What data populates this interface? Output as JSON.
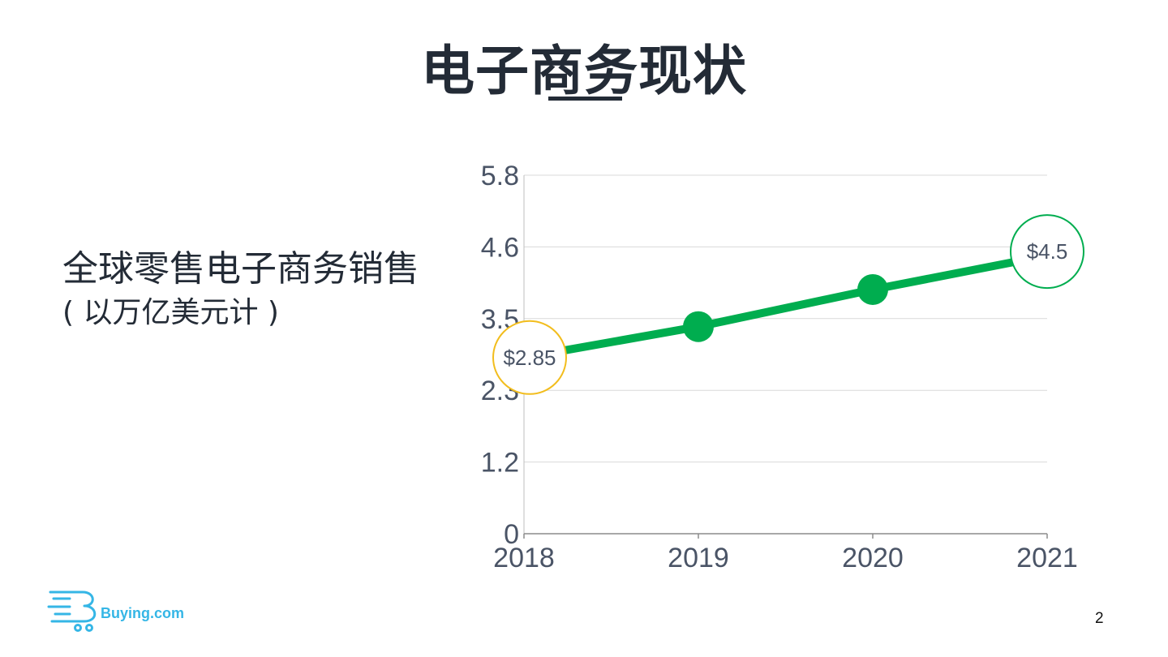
{
  "slide": {
    "title": "电子商务现状",
    "subtitle_line1": "全球零售电子商务销售",
    "subtitle_line2": "( 以万亿美元计 )",
    "page_number": "2",
    "logo_text": "Buying.com"
  },
  "colors": {
    "line": "#00ad4f",
    "gold": "#f2bd1d",
    "text": "#232b36",
    "axis_text": "#4a5466",
    "grid": "#d9d9d9",
    "logo": "#35b6e6"
  },
  "icons": {
    "logo": "shopping-cart-icon"
  },
  "chart_data": {
    "type": "line",
    "categories": [
      "2018",
      "2019",
      "2020",
      "2021"
    ],
    "series": [
      {
        "values": [
          2.85,
          3.35,
          3.95,
          4.5
        ]
      }
    ],
    "ylim": [
      0,
      5.8
    ],
    "yticks": [
      "0",
      "1.2",
      "2.3",
      "3.5",
      "4.6",
      "5.8"
    ],
    "ytick_values": [
      0,
      1.16,
      2.32,
      3.48,
      4.64,
      5.8
    ],
    "grid": true,
    "annotations": [
      {
        "category": "2018",
        "value": 2.85,
        "label": "$2.85",
        "style": "gold-circle"
      },
      {
        "category": "2021",
        "value": 4.5,
        "label": "$4.5",
        "style": "green-circle"
      }
    ]
  }
}
